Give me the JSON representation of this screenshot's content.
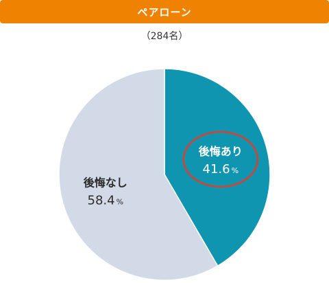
{
  "header": {
    "title": "ペアローン"
  },
  "subtitle": "（284名）",
  "colors": {
    "header_bg": "#ef8200",
    "slice_regret": "#0f95b0",
    "slice_no_regret": "#d1dae6",
    "highlight_ring": "#d9402e"
  },
  "chart_data": {
    "type": "pie",
    "title": "ペアローン",
    "subtitle": "（284名）",
    "slices": [
      {
        "label": "後悔あり",
        "value": 41.6,
        "value_text": "41.6",
        "unit": "%",
        "color": "#0f95b0",
        "highlighted": true
      },
      {
        "label": "後悔なし",
        "value": 58.4,
        "value_text": "58.4",
        "unit": "%",
        "color": "#d1dae6",
        "highlighted": false
      }
    ],
    "start": "12 o'clock",
    "direction": "clockwise",
    "legend": "none"
  }
}
